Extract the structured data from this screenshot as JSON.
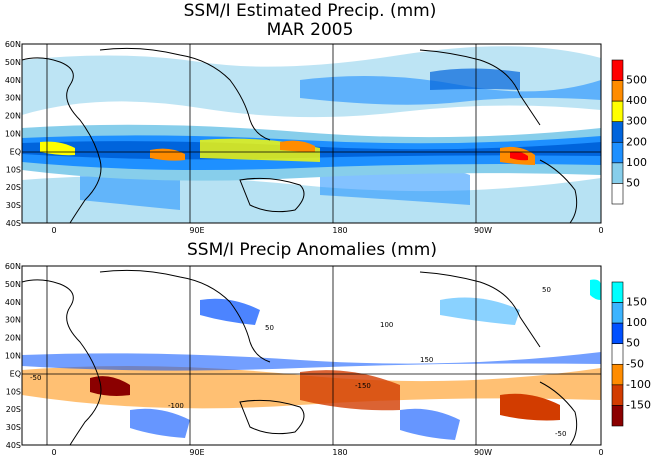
{
  "title_line1": "SSM/I Estimated Precip. (mm)",
  "title_line2": "MAR 2005",
  "title_anom": "SSM/I Precip Anomalies (mm)",
  "lat_labels": [
    "60N",
    "50N",
    "40N",
    "30N",
    "20N",
    "10N",
    "EQ",
    "10S",
    "20S",
    "30S",
    "40S"
  ],
  "lon_labels": [
    "0",
    "90E",
    "180",
    "90W",
    "0"
  ],
  "legend_precip": {
    "labels": [
      "500",
      "400",
      "300",
      "200",
      "100",
      "50"
    ],
    "colors": [
      "#ff0000",
      "#ff8c00",
      "#ffff00",
      "#0064dc",
      "#1e90ff",
      "#87ceeb",
      "#ffffff"
    ]
  },
  "legend_anom": {
    "labels": [
      "150",
      "100",
      "50",
      "-50",
      "-100",
      "-150"
    ],
    "colors": [
      "#00ffff",
      "#3cb4ff",
      "#0050ff",
      "#ffffff",
      "#ff8c00",
      "#d23c00",
      "#8b0000"
    ]
  },
  "contour_labels_anom": [
    "-50",
    "50",
    "100",
    "-100",
    "-150",
    "150"
  ],
  "colors": {
    "land_outline": "#000000",
    "grid_line": "#000000",
    "background": "#ffffff"
  }
}
